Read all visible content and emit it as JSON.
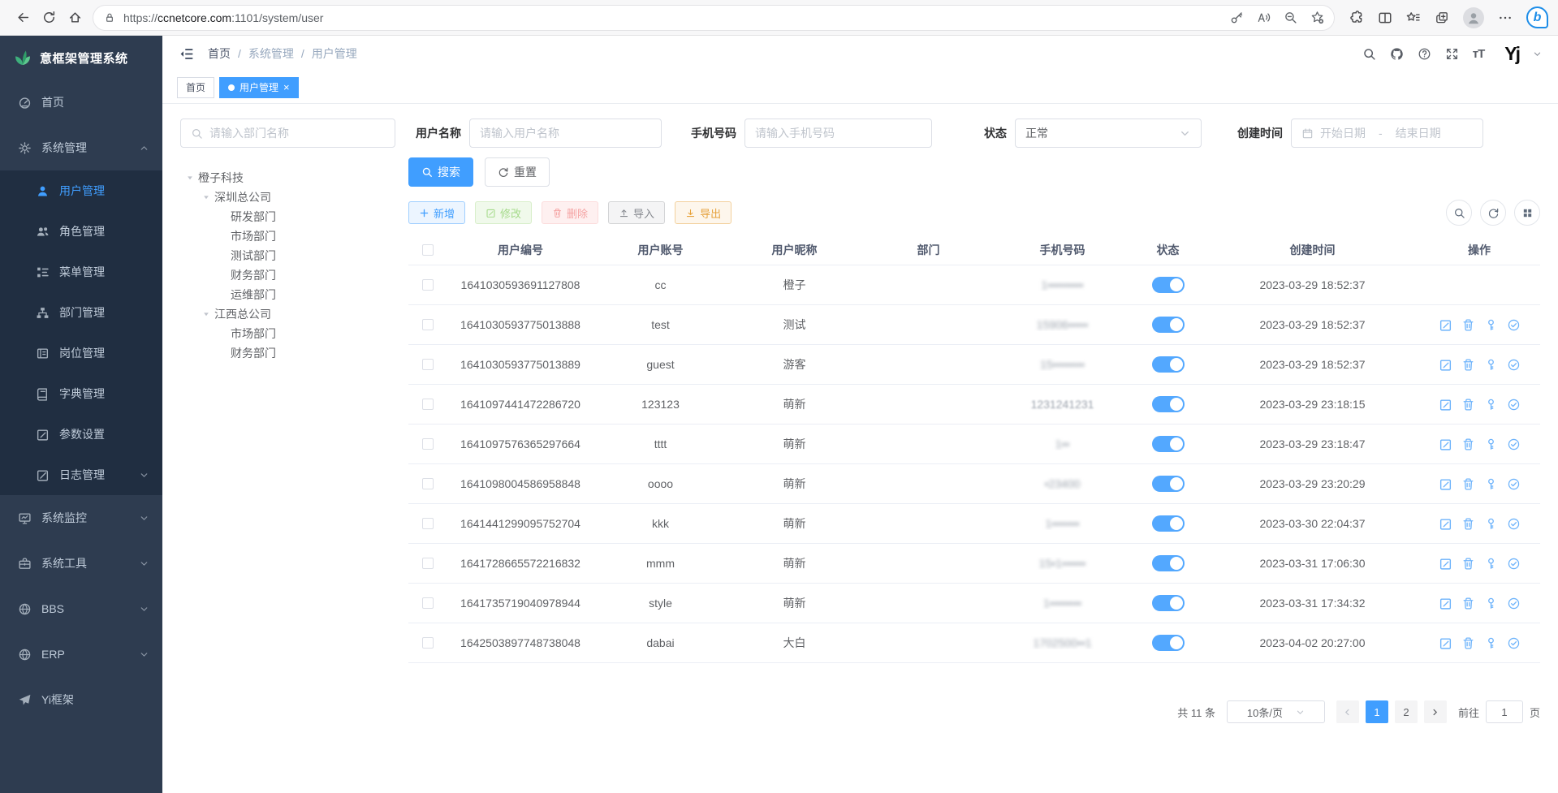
{
  "browser": {
    "url_scheme": "https://",
    "url_domain": "ccnetcore.com",
    "url_rest": ":1101/system/user"
  },
  "sidebar": {
    "logo": "意框架管理系统",
    "menu": [
      {
        "label": "首页",
        "icon": "dashboard-icon",
        "level": 1
      },
      {
        "label": "系统管理",
        "icon": "gear-icon",
        "level": 1,
        "caret": "up"
      },
      {
        "label": "用户管理",
        "icon": "user-icon",
        "level": 2,
        "active": true
      },
      {
        "label": "角色管理",
        "icon": "roles-icon",
        "level": 2
      },
      {
        "label": "菜单管理",
        "icon": "menu-tree-icon",
        "level": 2
      },
      {
        "label": "部门管理",
        "icon": "org-icon",
        "level": 2
      },
      {
        "label": "岗位管理",
        "icon": "post-icon",
        "level": 2
      },
      {
        "label": "字典管理",
        "icon": "dict-icon",
        "level": 2
      },
      {
        "label": "参数设置",
        "icon": "edit-square-icon",
        "level": 2
      },
      {
        "label": "日志管理",
        "icon": "log-icon",
        "level": 2,
        "caret": "down"
      },
      {
        "label": "系统监控",
        "icon": "monitor-icon",
        "level": 1,
        "caret": "down"
      },
      {
        "label": "系统工具",
        "icon": "tools-icon",
        "level": 1,
        "caret": "down"
      },
      {
        "label": "BBS",
        "icon": "globe-icon",
        "level": 1,
        "caret": "down"
      },
      {
        "label": "ERP",
        "icon": "globe-icon",
        "level": 1,
        "caret": "down"
      },
      {
        "label": "Yi框架",
        "icon": "send-icon",
        "level": 1
      }
    ]
  },
  "topbar": {
    "breadcrumb": [
      "首页",
      "系统管理",
      "用户管理"
    ],
    "separator": "/"
  },
  "tabs": [
    {
      "label": "首页",
      "active": false
    },
    {
      "label": "用户管理",
      "active": true,
      "closable": true
    }
  ],
  "filters": {
    "dept_placeholder": "请输入部门名称",
    "username_label": "用户名称",
    "username_placeholder": "请输入用户名称",
    "phone_label": "手机号码",
    "phone_placeholder": "请输入手机号码",
    "status_label": "状态",
    "status_value": "正常",
    "created_label": "创建时间",
    "date_start_placeholder": "开始日期",
    "date_separator": "-",
    "date_end_placeholder": "结束日期",
    "search_button": "搜索",
    "reset_button": "重置"
  },
  "tree": [
    {
      "label": "橙子科技",
      "level": 0,
      "caret": true
    },
    {
      "label": "深圳总公司",
      "level": 1,
      "caret": true
    },
    {
      "label": "研发部门",
      "level": 2
    },
    {
      "label": "市场部门",
      "level": 2
    },
    {
      "label": "测试部门",
      "level": 2
    },
    {
      "label": "财务部门",
      "level": 2
    },
    {
      "label": "运维部门",
      "level": 2
    },
    {
      "label": "江西总公司",
      "level": 1,
      "caret": true
    },
    {
      "label": "市场部门",
      "level": 2
    },
    {
      "label": "财务部门",
      "level": 2
    }
  ],
  "toolbar": {
    "add": "新增",
    "edit": "修改",
    "delete": "删除",
    "import": "导入",
    "export": "导出"
  },
  "table": {
    "columns": [
      "用户编号",
      "用户账号",
      "用户昵称",
      "部门",
      "手机号码",
      "状态",
      "创建时间",
      "操作"
    ],
    "row_action_icons": [
      "edit-icon",
      "delete-icon",
      "reset-password-icon",
      "assign-role-icon"
    ],
    "rows": [
      {
        "id": "1641030593691127808",
        "account": "cc",
        "nickname": "橙子",
        "dept": "",
        "phone": "1•••••••••",
        "phone_blur": "heavy",
        "status_on": true,
        "created": "2023-03-29 18:52:37",
        "actions": false
      },
      {
        "id": "1641030593775013888",
        "account": "test",
        "nickname": "测试",
        "dept": "",
        "phone": "15906•••••",
        "phone_blur": "heavy",
        "status_on": true,
        "created": "2023-03-29 18:52:37",
        "actions": true
      },
      {
        "id": "1641030593775013889",
        "account": "guest",
        "nickname": "游客",
        "dept": "",
        "phone": "15••••••••",
        "phone_blur": "heavy",
        "status_on": true,
        "created": "2023-03-29 18:52:37",
        "actions": true
      },
      {
        "id": "1641097441472286720",
        "account": "123123",
        "nickname": "萌新",
        "dept": "",
        "phone": "1231241231",
        "phone_blur": "light",
        "status_on": true,
        "created": "2023-03-29 23:18:15",
        "actions": true
      },
      {
        "id": "1641097576365297664",
        "account": "tttt",
        "nickname": "萌新",
        "dept": "",
        "phone": "1••",
        "phone_blur": "heavy",
        "status_on": true,
        "created": "2023-03-29 23:18:47",
        "actions": true
      },
      {
        "id": "1641098004586958848",
        "account": "oooo",
        "nickname": "萌新",
        "dept": "",
        "phone": "•23400",
        "phone_blur": "heavy",
        "status_on": true,
        "created": "2023-03-29 23:20:29",
        "actions": true
      },
      {
        "id": "1641441299095752704",
        "account": "kkk",
        "nickname": "萌新",
        "dept": "",
        "phone": "1•••••••",
        "phone_blur": "heavy",
        "status_on": true,
        "created": "2023-03-30 22:04:37",
        "actions": true
      },
      {
        "id": "1641728665572216832",
        "account": "mmm",
        "nickname": "萌新",
        "dept": "",
        "phone": "15•1••••••",
        "phone_blur": "heavy",
        "status_on": true,
        "created": "2023-03-31 17:06:30",
        "actions": true
      },
      {
        "id": "1641735719040978944",
        "account": "style",
        "nickname": "萌新",
        "dept": "",
        "phone": "1••••••••",
        "phone_blur": "heavy",
        "status_on": true,
        "created": "2023-03-31 17:34:32",
        "actions": true
      },
      {
        "id": "1642503897748738048",
        "account": "dabai",
        "nickname": "大白",
        "dept": "",
        "phone": "1702500••1",
        "phone_blur": "heavy",
        "status_on": true,
        "created": "2023-04-02 20:27:00",
        "actions": true
      }
    ]
  },
  "pagination": {
    "total": "共 11 条",
    "page_size": "10条/页",
    "pages": [
      "1",
      "2"
    ],
    "active_page": "1",
    "goto_label": "前往",
    "goto_value": "1",
    "goto_suffix": "页"
  },
  "colors": {
    "accent": "#409eff",
    "sidebar_bg": "#2e3c50",
    "submenu_bg": "#202e41",
    "toggle_on": "#53a8ff"
  }
}
